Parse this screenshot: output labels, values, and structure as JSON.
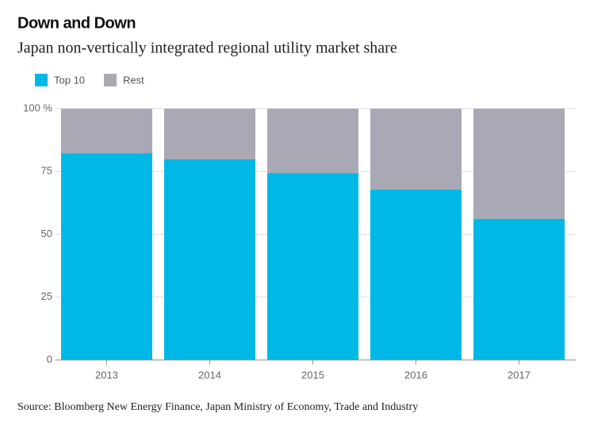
{
  "chart_data": {
    "type": "stacked_bar",
    "title": "Down and Down",
    "subtitle": "Japan non-vertically integrated regional utility market share",
    "source": "Source: Bloomberg New Energy Finance, Japan Ministry of Economy, Trade and Industry",
    "categories": [
      "2013",
      "2014",
      "2015",
      "2016",
      "2017"
    ],
    "series": [
      {
        "name": "Top 10",
        "color": "#00b8e6",
        "values": [
          82.3,
          79.8,
          74.4,
          67.8,
          56.2
        ]
      },
      {
        "name": "Rest",
        "color": "#a9a9b5",
        "values": [
          17.7,
          20.2,
          25.6,
          32.2,
          43.8
        ]
      }
    ],
    "ylim": [
      0,
      100
    ],
    "yticks": [
      0,
      25,
      50,
      75,
      {
        "value": 100,
        "label": "100 %"
      }
    ],
    "grid": true
  }
}
